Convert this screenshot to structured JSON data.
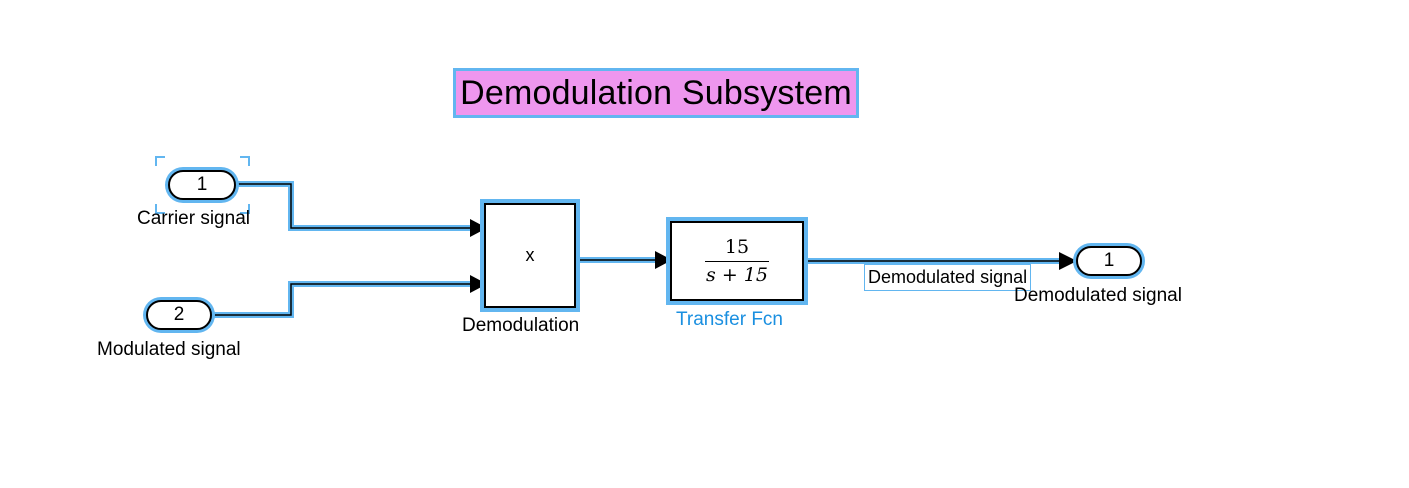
{
  "title": "Demodulation Subsystem",
  "inports": [
    {
      "number": "1",
      "label": "Carrier signal"
    },
    {
      "number": "2",
      "label": "Modulated signal"
    }
  ],
  "product_block": {
    "symbol": "x",
    "label": "Demodulation"
  },
  "transfer_fcn": {
    "numerator": "15",
    "denominator": "s + 15",
    "label": "Transfer Fcn"
  },
  "signal_line_label": "Demodulated signal",
  "outport": {
    "number": "1",
    "label": "Demodulated signal"
  },
  "colors": {
    "highlight": "#62b6f0",
    "title_background": "#ee96ee",
    "selected_label": "#1a8fe0"
  }
}
